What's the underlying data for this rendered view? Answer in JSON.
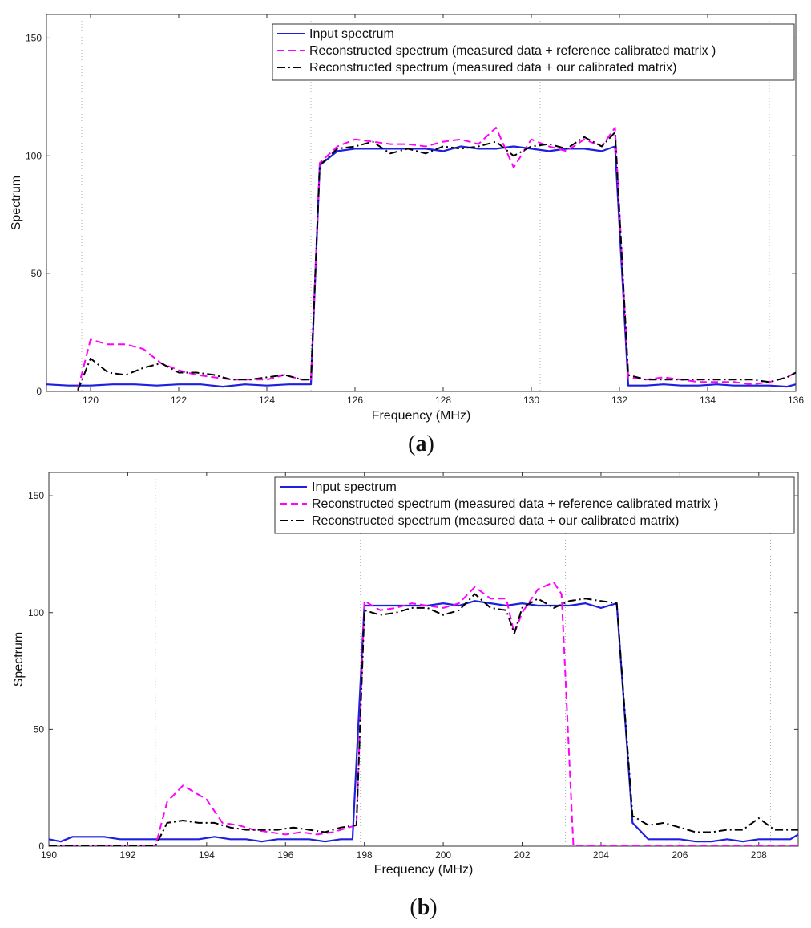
{
  "chart_data": [
    {
      "type": "line",
      "panel_label": "a",
      "xlabel": "Frequency (MHz)",
      "ylabel": "Spectrum",
      "xlim": [
        119,
        136
      ],
      "ylim": [
        0,
        160
      ],
      "xticks": [
        120,
        122,
        124,
        126,
        128,
        130,
        132,
        134,
        136
      ],
      "yticks": [
        0,
        50,
        100,
        150
      ],
      "vlines": [
        119.8,
        125.0,
        130.2,
        135.4
      ],
      "legend_position": "top-right",
      "series": [
        {
          "name": "Input spectrum",
          "color": "#1f1fe0",
          "dash": "solid",
          "x": [
            119,
            119.5,
            120,
            120.5,
            121,
            121.5,
            122,
            122.5,
            123,
            123.5,
            124,
            124.5,
            125,
            125.2,
            125.6,
            126,
            126.4,
            126.8,
            127.2,
            127.6,
            128,
            128.4,
            128.8,
            129.2,
            129.6,
            130,
            130.4,
            130.8,
            131.2,
            131.6,
            131.9,
            132.2,
            132.6,
            133,
            133.4,
            133.8,
            134.2,
            134.6,
            135,
            135.4,
            135.8,
            136
          ],
          "y": [
            3,
            2.5,
            2.5,
            3,
            3,
            2.5,
            3,
            3,
            2,
            3,
            2.5,
            3,
            3,
            96,
            102,
            103,
            103,
            103,
            103,
            103,
            102,
            104,
            103,
            103,
            104,
            103,
            102,
            103,
            103,
            102,
            104,
            2.5,
            2.5,
            3,
            2.5,
            2.5,
            3,
            2.5,
            2.5,
            2.5,
            2,
            3
          ]
        },
        {
          "name": "Reconstructed spectrum (measured data + reference calibrated matrix )",
          "color": "#ff00ff",
          "dash": "dashed",
          "x": [
            119,
            119.5,
            119.7,
            120,
            120.4,
            120.8,
            121.2,
            121.6,
            122,
            122.4,
            122.8,
            123.2,
            123.6,
            124,
            124.4,
            124.8,
            125,
            125.2,
            125.6,
            126,
            126.4,
            126.8,
            127.2,
            127.6,
            128,
            128.4,
            128.8,
            129.2,
            129.6,
            130,
            130.4,
            130.8,
            131.2,
            131.6,
            131.9,
            132.2,
            132.6,
            133,
            133.4,
            133.8,
            134.2,
            134.6,
            135,
            135.4,
            135.8,
            136
          ],
          "y": [
            0,
            0,
            0,
            22,
            20,
            20,
            18,
            12,
            9,
            7,
            6,
            5,
            5,
            5,
            7,
            5,
            5,
            97,
            104,
            107,
            106,
            105,
            105,
            104,
            106,
            107,
            105,
            112,
            95,
            107,
            104,
            102,
            107,
            104,
            112,
            6,
            5,
            6,
            5,
            4,
            4,
            4,
            3,
            4,
            6,
            8
          ]
        },
        {
          "name": "Reconstructed spectrum (measured data + our calibrated matrix)",
          "color": "#000000",
          "dash": "dashdot",
          "x": [
            119,
            119.5,
            119.7,
            120,
            120.4,
            120.8,
            121.2,
            121.6,
            122,
            122.4,
            122.8,
            123.2,
            123.6,
            124,
            124.4,
            124.8,
            125,
            125.2,
            125.6,
            126,
            126.4,
            126.8,
            127.2,
            127.6,
            128,
            128.4,
            128.8,
            129.2,
            129.6,
            130,
            130.4,
            130.8,
            131.2,
            131.6,
            131.9,
            132.2,
            132.6,
            133,
            133.4,
            133.8,
            134.2,
            134.6,
            135,
            135.4,
            135.8,
            136
          ],
          "y": [
            0,
            0,
            0,
            14,
            8,
            7,
            10,
            12,
            8,
            8,
            7,
            5,
            5,
            6,
            7,
            5,
            5,
            96,
            103,
            104,
            106,
            101,
            103,
            101,
            104,
            103,
            104,
            106,
            100,
            104,
            105,
            103,
            108,
            104,
            110,
            7,
            5,
            5,
            5,
            5,
            5,
            5,
            5,
            4,
            6,
            8
          ]
        }
      ]
    },
    {
      "type": "line",
      "panel_label": "b",
      "xlabel": "Frequency (MHz)",
      "ylabel": "Spectrum",
      "xlim": [
        190,
        209
      ],
      "ylim": [
        0,
        160
      ],
      "xticks": [
        190,
        192,
        194,
        196,
        198,
        200,
        202,
        204,
        206,
        208
      ],
      "yticks": [
        0,
        50,
        100,
        150
      ],
      "vlines": [
        192.7,
        197.9,
        203.1,
        208.3
      ],
      "legend_position": "top-right",
      "series": [
        {
          "name": "Input spectrum",
          "color": "#1f1fe0",
          "dash": "solid",
          "x": [
            190,
            190.3,
            190.6,
            191,
            191.4,
            191.8,
            192.2,
            192.6,
            193,
            193.4,
            193.8,
            194.2,
            194.6,
            195,
            195.4,
            195.8,
            196.2,
            196.6,
            197,
            197.4,
            197.7,
            198,
            198.4,
            198.8,
            199.2,
            199.6,
            200,
            200.4,
            200.8,
            201.2,
            201.6,
            202,
            202.4,
            202.8,
            203.2,
            203.6,
            204,
            204.4,
            204.8,
            205.2,
            205.6,
            206,
            206.4,
            206.8,
            207.2,
            207.6,
            208,
            208.4,
            208.8,
            209
          ],
          "y": [
            3,
            2,
            4,
            4,
            4,
            3,
            3,
            3,
            3,
            3,
            3,
            4,
            3,
            3,
            2,
            3,
            3,
            3,
            2,
            3,
            3,
            103,
            103,
            103,
            103,
            103,
            104,
            103,
            105,
            104,
            103,
            104,
            103,
            103,
            103,
            104,
            102,
            104,
            10,
            3,
            3,
            3,
            2,
            2,
            3,
            2,
            3,
            3,
            3,
            5
          ]
        },
        {
          "name": "Reconstructed spectrum (measured data + reference calibrated matrix )",
          "color": "#ff00ff",
          "dash": "dashed",
          "x": [
            190,
            190.5,
            191,
            191.5,
            192,
            192.5,
            192.7,
            193,
            193.4,
            193.8,
            194,
            194.4,
            194.8,
            195.2,
            195.6,
            196,
            196.4,
            196.8,
            197.2,
            197.6,
            197.8,
            198,
            198.4,
            198.8,
            199.2,
            199.6,
            200,
            200.4,
            200.8,
            201.2,
            201.6,
            201.8,
            202,
            202.4,
            202.8,
            203.0,
            203.3,
            203.6,
            204,
            204.5,
            205,
            205.5,
            206,
            206.5,
            207,
            207.5,
            208,
            208.5,
            209
          ],
          "y": [
            0,
            0,
            0,
            0,
            0,
            0,
            0,
            19,
            26,
            22,
            20,
            10,
            9,
            7,
            6,
            5,
            6,
            5,
            6,
            8,
            9,
            105,
            101,
            102,
            104,
            103,
            102,
            104,
            111,
            106,
            106,
            91,
            100,
            110,
            113,
            108,
            0,
            0,
            0,
            0,
            0,
            0,
            0,
            0,
            0,
            0,
            0,
            0,
            0
          ]
        },
        {
          "name": "Reconstructed spectrum (measured data + our calibrated matrix)",
          "color": "#000000",
          "dash": "dashdot",
          "x": [
            190,
            190.5,
            191,
            191.5,
            192,
            192.5,
            192.7,
            193,
            193.4,
            193.8,
            194.2,
            194.6,
            195,
            195.4,
            195.8,
            196.2,
            196.6,
            197,
            197.4,
            197.8,
            198,
            198.4,
            198.8,
            199.2,
            199.6,
            200,
            200.4,
            200.8,
            201.2,
            201.6,
            201.8,
            202,
            202.4,
            202.8,
            203.2,
            203.6,
            204,
            204.4,
            204.8,
            205.2,
            205.6,
            206,
            206.4,
            206.8,
            207.2,
            207.6,
            208,
            208.4,
            208.8,
            209
          ],
          "y": [
            0,
            0,
            0,
            0,
            0,
            0,
            0,
            10,
            11,
            10,
            10,
            8,
            7,
            7,
            7,
            8,
            7,
            6,
            8,
            9,
            101,
            99,
            100,
            102,
            102,
            99,
            101,
            108,
            102,
            101,
            91,
            102,
            106,
            102,
            105,
            106,
            105,
            104,
            13,
            9,
            10,
            8,
            6,
            6,
            7,
            7,
            12,
            7,
            7,
            7
          ]
        }
      ]
    }
  ]
}
